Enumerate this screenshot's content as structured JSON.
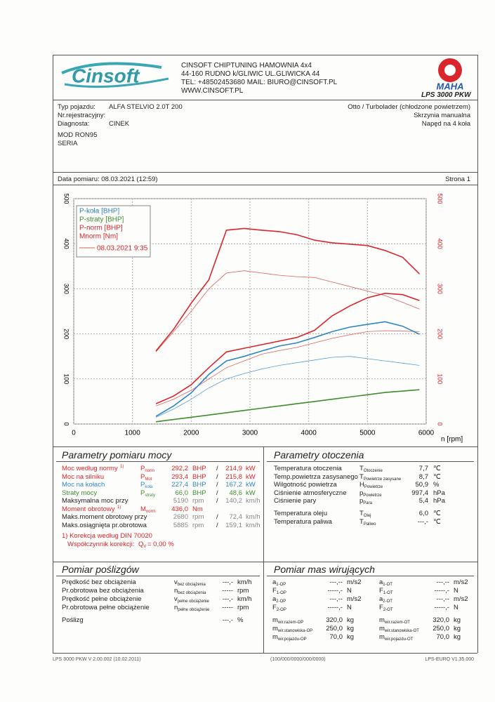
{
  "header": {
    "logo": "Cinsoft",
    "company": [
      "CINSOFT CHIPTUNING HAMOWNIA 4x4",
      "44-160 RUDNO k/GLIWIC UL.GLIWICKA 44",
      "TEL: +48502453680  MAIL: BIURO@CINSOFT.PL",
      "WWW.CINSOFT.PL"
    ],
    "brand": "MAHA",
    "model": "LPS 3000 PKW"
  },
  "vehicle": {
    "rows": [
      [
        "Typ pojazdu:",
        "ALFA STELVIO 2.0T 200"
      ],
      [
        "Nr.rejestracyjny:",
        ""
      ],
      [
        "Diagnosta:",
        "CINEK"
      ]
    ],
    "right": [
      "Otto / Turbolader (chłodzone powietrzem)",
      "Skrzynia manualna",
      "Napęd na 4 koła"
    ],
    "notes": [
      "MOD RON95",
      "SERIA"
    ]
  },
  "measurement": {
    "date": "Data pomiaru: 08.03.2021 (12:59)",
    "page": "Strona 1"
  },
  "chart_data": {
    "type": "line",
    "x_label": "n [rpm]",
    "xlim": [
      0,
      6000
    ],
    "xticks": [
      0,
      1000,
      2000,
      3000,
      4000,
      5000,
      6000
    ],
    "ylim": [
      0,
      500
    ],
    "yticks": [
      0,
      100,
      200,
      300,
      400,
      500
    ],
    "y2lim": [
      0,
      500
    ],
    "y2ticks": [
      0,
      100,
      200,
      300,
      400,
      500
    ],
    "grid": true,
    "legend": "top-left",
    "x": [
      1400,
      1700,
      2000,
      2300,
      2600,
      2900,
      3200,
      3500,
      3800,
      4100,
      4400,
      4700,
      5000,
      5300,
      5600,
      5885
    ],
    "series": [
      {
        "name": "P-koła [BHP]",
        "color": "#2e86c1",
        "values": [
          17,
          40,
          69,
          110,
          140,
          150,
          162,
          173,
          180,
          192,
          205,
          215,
          221,
          227,
          217,
          199
        ]
      },
      {
        "name": "P-straty [BHP]",
        "color": "#3e8e2e",
        "values": [
          5,
          10,
          15,
          20,
          25,
          30,
          35,
          40,
          45,
          50,
          55,
          60,
          65,
          70,
          73,
          76
        ]
      },
      {
        "name": "P-norm [BHP]",
        "color": "#d9262c",
        "values": [
          45,
          62,
          87,
          125,
          160,
          168,
          176,
          184,
          192,
          208,
          240,
          262,
          280,
          290,
          287,
          274
        ]
      },
      {
        "name": "Mnorm [Nm]",
        "color": "#d9262c",
        "axis": "y2",
        "values": [
          162,
          210,
          268,
          320,
          430,
          434,
          430,
          427,
          420,
          408,
          402,
          399,
          396,
          385,
          370,
          333
        ]
      }
    ],
    "comparison": {
      "label": "08.03.2021 9:35",
      "series": [
        {
          "color": "#e06060",
          "values": [
            40,
            55,
            75,
            100,
            125,
            140,
            155,
            163,
            170,
            180,
            190,
            198,
            205,
            207,
            206,
            205
          ]
        },
        {
          "color": "#e06060",
          "axis": "y2",
          "values": [
            160,
            205,
            250,
            300,
            335,
            340,
            335,
            330,
            327,
            325,
            315,
            305,
            295,
            285,
            270,
            255
          ]
        },
        {
          "color": "#5a9fd0",
          "values": [
            15,
            33,
            55,
            80,
            100,
            112,
            122,
            130,
            136,
            142,
            148,
            150,
            145,
            140,
            135,
            130
          ]
        }
      ]
    }
  },
  "power": {
    "title": "Parametry pomiaru mocy",
    "rows": [
      {
        "label": "Moc według normy",
        "note": "1)",
        "symbol": "P",
        "sub": "norm",
        "v1": "292,2",
        "u1": "BHP",
        "sep": "/",
        "v2": "214,9",
        "u2": "kW",
        "color": "#d9262c"
      },
      {
        "label": "Moc na silniku",
        "symbol": "P",
        "sub": "Mot",
        "v1": "293,4",
        "u1": "BHP",
        "sep": "/",
        "v2": "215,8",
        "u2": "kW",
        "color": "#d9262c"
      },
      {
        "label": "Moc na kołach",
        "symbol": "P",
        "sub": "koła",
        "v1": "227,4",
        "u1": "BHP",
        "sep": "/",
        "v2": "167,2",
        "u2": "kW",
        "color": "#2e86c1"
      },
      {
        "label": "Straty mocy",
        "symbol": "P",
        "sub": "straty",
        "v1": "66,0",
        "u1": "BHP",
        "sep": "/",
        "v2": "48,6",
        "u2": "kW",
        "color": "#3e8e2e"
      },
      {
        "label": "Maksymalna moc przy",
        "v1": "5190",
        "u1": "rpm",
        "sep": "/",
        "v2": "140,2",
        "u2": "km/h",
        "color": "#222",
        "value_color": "#888"
      },
      {
        "label": "Moment obrotowy",
        "note": "1)",
        "symbol": "M",
        "sub": "norm",
        "v1": "436,0",
        "u1": "Nm",
        "color": "#d9262c"
      },
      {
        "label": "Maks.moment obrotowy przy",
        "v1": "2680",
        "u1": "rpm",
        "sep": "/",
        "v2": "72,4",
        "u2": "km/h",
        "color": "#222",
        "value_color": "#888"
      },
      {
        "label": "Maks.osiągnięta pr.obrotowa",
        "v1": "5885",
        "u1": "rpm",
        "sep": "/",
        "v2": "159,1",
        "u2": "km/h",
        "color": "#222",
        "value_color": "#888"
      }
    ],
    "footnote": "1) Korekcja według DIN 70020",
    "factor": {
      "label": "Współczynnik korekcji:",
      "symbol": "Q",
      "sub": "V",
      "value": "=  0,00 %"
    }
  },
  "environment": {
    "title": "Parametry otoczenia",
    "rows": [
      {
        "label": "Temperatura otoczenia",
        "symbol": "T",
        "sub": "Otoczenie",
        "v1": "7,7",
        "u1": "℃"
      },
      {
        "label": "Temp.powietrza zasysanego",
        "symbol": "T",
        "sub": "Powietrze zasysane",
        "v1": "8,7",
        "u1": "℃"
      },
      {
        "label": "Wilgotność powietrza",
        "symbol": "H",
        "sub": "Powietrze",
        "v1": "50,9",
        "u1": "%"
      },
      {
        "label": "Ciśnienie atmosferyczne",
        "symbol": "p",
        "sub": "Powietrze",
        "v1": "997,4",
        "u1": "hPa"
      },
      {
        "label": "Ciśnienie pary",
        "symbol": "p",
        "sub": "Para",
        "v1": "5,4",
        "u1": "hPa"
      },
      {
        "label": "Temperatura oleju",
        "symbol": "T",
        "sub": "Olej",
        "v1": "6,0",
        "u1": "℃"
      },
      {
        "label": "Temperatura paliwa",
        "symbol": "T",
        "sub": "Paliwo",
        "v1": "---,-",
        "u1": "℃"
      }
    ]
  },
  "slip": {
    "title": "Pomiar poślizgów",
    "rows": [
      {
        "label": "Prędkość bez obciążenia",
        "symbol": "v",
        "sub": "bez obciążenia",
        "v1": "---,-",
        "u1": "km/h"
      },
      {
        "label": "Pr.obrotowa bez obciążenia",
        "symbol": "n",
        "sub": "bez obciążenia",
        "v1": "-----",
        "u1": "rpm"
      },
      {
        "label": "Prędkość pełne obciążenie",
        "symbol": "v",
        "sub": "pełne obciążenie",
        "v1": "---,-",
        "u1": "km/h"
      },
      {
        "label": "Pr.obrotowa pełne obciążenie",
        "symbol": "n",
        "sub": "pełne obciążenie",
        "v1": "-----",
        "u1": "rpm"
      },
      {
        "label": "Poślizg",
        "v1": "---,-",
        "u1": "%"
      }
    ]
  },
  "masses": {
    "title": "Pomiar mas wirujących",
    "rows": [
      [
        {
          "symbol": "a",
          "sub": "1-OP",
          "v1": "---,--",
          "u1": "m/s2"
        },
        {
          "symbol": "a",
          "sub": "1-OT",
          "v1": "---,--",
          "u1": "m/s2"
        }
      ],
      [
        {
          "symbol": "F",
          "sub": "1-OP",
          "v1": "-----,-",
          "u1": "N"
        },
        {
          "symbol": "F",
          "sub": "1-OT",
          "v1": "-----,-",
          "u1": "N"
        }
      ],
      [
        {
          "symbol": "a",
          "sub": "2-OP",
          "v1": "---,--",
          "u1": "m/s2"
        },
        {
          "symbol": "a",
          "sub": "2-OT",
          "v1": "---,--",
          "u1": "m/s2"
        }
      ],
      [
        {
          "symbol": "F",
          "sub": "2-OP",
          "v1": "-----,-",
          "u1": "N"
        },
        {
          "symbol": "F",
          "sub": "2-OT",
          "v1": "-----,-",
          "u1": "N"
        }
      ],
      [
        {
          "symbol": "m",
          "sub": "wir.razem-OP",
          "v1": "320,0",
          "u1": "kg"
        },
        {
          "symbol": "m",
          "sub": "wir.razem-OT",
          "v1": "320,0",
          "u1": "kg"
        }
      ],
      [
        {
          "symbol": "m",
          "sub": "wir.stanowiska-OP",
          "v1": "250,0",
          "u1": "kg"
        },
        {
          "symbol": "m",
          "sub": "wir.stanowiska-OT",
          "v1": "250,0",
          "u1": "kg"
        }
      ],
      [
        {
          "symbol": "m",
          "sub": "wir.pojazdu-OP",
          "v1": "70,0",
          "u1": "kg"
        },
        {
          "symbol": "m",
          "sub": "wir.pojazdu-OT",
          "v1": "70,0",
          "u1": "kg"
        }
      ]
    ]
  },
  "footer": [
    "LPS 3000 PKW V 2.00.002 (10.02.2011)",
    "(100/000/0000/000/0000)",
    "LPS-EURO V1.35.000"
  ]
}
